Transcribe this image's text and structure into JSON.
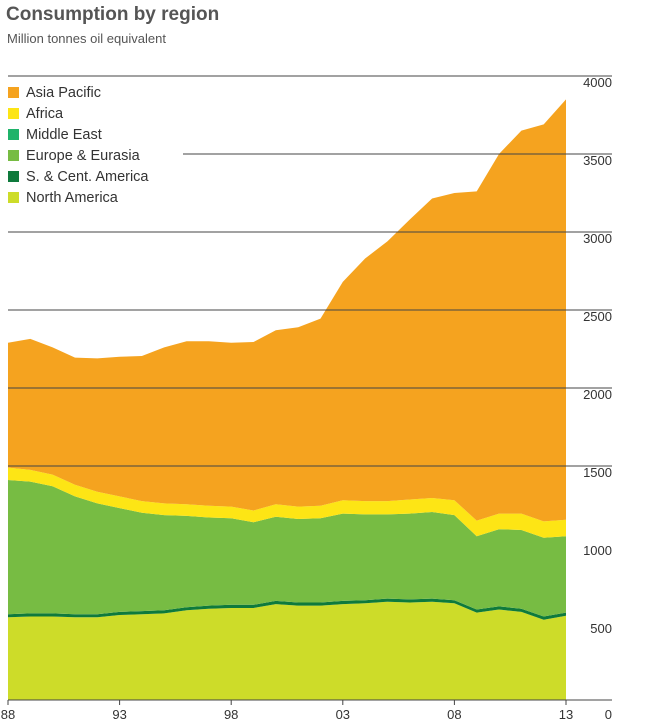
{
  "chart_data": {
    "type": "area",
    "stacked": true,
    "title": "Consumption by region",
    "subtitle": "Million tonnes oil equivalent",
    "xlabel": "",
    "ylabel": "",
    "x": [
      1988,
      1989,
      1990,
      1991,
      1992,
      1993,
      1994,
      1995,
      1996,
      1997,
      1998,
      1999,
      2000,
      2001,
      2002,
      2003,
      2004,
      2005,
      2006,
      2007,
      2008,
      2009,
      2010,
      2011,
      2012,
      2013
    ],
    "xtick_labels": [
      "88",
      "93",
      "98",
      "03",
      "08",
      "13"
    ],
    "xtick_values": [
      1988,
      1993,
      1998,
      2003,
      2008,
      2013
    ],
    "ytick_labels": [
      "0",
      "500",
      "1000",
      "1500",
      "2000",
      "2500",
      "3000",
      "3500",
      "4000"
    ],
    "ytick_values": [
      0,
      500,
      1000,
      1500,
      2000,
      2500,
      3000,
      3500,
      4000
    ],
    "ylim": [
      0,
      4000
    ],
    "gridlines_at": [
      1500,
      2000,
      2500,
      3000,
      3500,
      4000
    ],
    "series": [
      {
        "name": "North America",
        "color": "#cddc29",
        "values": [
          530,
          535,
          535,
          530,
          530,
          545,
          550,
          555,
          575,
          585,
          590,
          590,
          615,
          605,
          605,
          615,
          620,
          630,
          625,
          630,
          620,
          560,
          580,
          565,
          515,
          540
        ]
      },
      {
        "name": "S. & Cent. America",
        "color": "#0e7a3c",
        "values": [
          20,
          20,
          20,
          20,
          20,
          20,
          20,
          20,
          20,
          20,
          20,
          20,
          20,
          20,
          20,
          20,
          20,
          20,
          20,
          20,
          20,
          20,
          20,
          20,
          20,
          20
        ]
      },
      {
        "name": "Europe & Eurasia",
        "color": "#77bc43",
        "values": [
          860,
          845,
          815,
          755,
          710,
          665,
          630,
          610,
          585,
          565,
          555,
          530,
          540,
          535,
          540,
          560,
          550,
          540,
          550,
          555,
          545,
          470,
          495,
          505,
          505,
          490
        ]
      },
      {
        "name": "Middle East",
        "color": "#1fb36a",
        "values": [
          0,
          0,
          0,
          0,
          0,
          0,
          0,
          0,
          0,
          0,
          0,
          0,
          0,
          0,
          0,
          0,
          0,
          0,
          0,
          0,
          0,
          0,
          0,
          0,
          0,
          0
        ]
      },
      {
        "name": "Africa",
        "color": "#fde515",
        "values": [
          80,
          75,
          75,
          75,
          75,
          75,
          75,
          75,
          75,
          75,
          75,
          75,
          80,
          80,
          80,
          85,
          85,
          85,
          90,
          90,
          95,
          100,
          100,
          105,
          105,
          105
        ]
      },
      {
        "name": "Asia Pacific",
        "color": "#f5a31f",
        "values": [
          800,
          840,
          815,
          815,
          855,
          895,
          930,
          1000,
          1045,
          1055,
          1050,
          1080,
          1115,
          1150,
          1200,
          1400,
          1555,
          1665,
          1795,
          1920,
          1970,
          2110,
          2305,
          2455,
          2545,
          2695
        ]
      }
    ],
    "legend": [
      "Asia Pacific",
      "Africa",
      "Middle East",
      "Europe & Eurasia",
      "S. & Cent. America",
      "North America"
    ],
    "legend_colors": [
      "#f5a31f",
      "#fde515",
      "#1fb36a",
      "#77bc43",
      "#0e7a3c",
      "#cddc29"
    ],
    "legend_position": "top-left"
  }
}
